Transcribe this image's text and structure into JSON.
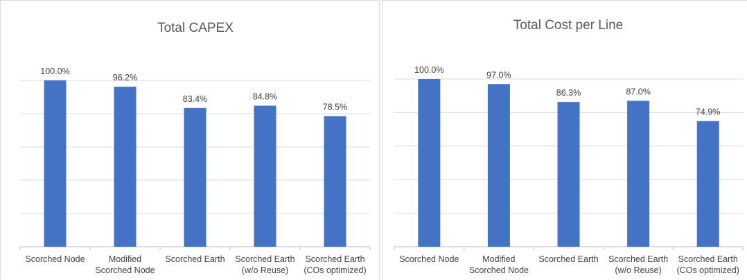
{
  "chart_data": [
    {
      "type": "bar",
      "title": "Total CAPEX",
      "categories": [
        [
          "Scorched Node"
        ],
        [
          "Modified",
          "Scorched Node"
        ],
        [
          "Scorched Earth"
        ],
        [
          "Scorched Earth",
          "(w/o Reuse)"
        ],
        [
          "Scorched Earth",
          "(COs optimized)"
        ]
      ],
      "values": [
        100.0,
        96.2,
        83.4,
        84.8,
        78.5
      ],
      "data_labels": [
        "100.0%",
        "96.2%",
        "83.4%",
        "84.8%",
        "78.5%"
      ],
      "ylim": [
        0,
        100
      ],
      "grid": true,
      "bar_color": "#4472C4"
    },
    {
      "type": "bar",
      "title": "Total Cost per Line",
      "categories": [
        [
          "Scorched Node"
        ],
        [
          "Modified",
          "Scorched Node"
        ],
        [
          "Scorched Earth"
        ],
        [
          "Scorched Earth",
          "(w/o Reuse)"
        ],
        [
          "Scorched Earth",
          "(COs optimized)"
        ]
      ],
      "values": [
        100.0,
        97.0,
        86.3,
        87.0,
        74.9
      ],
      "data_labels": [
        "100.0%",
        "97.0%",
        "86.3%",
        "87.0%",
        "74.9%"
      ],
      "ylim": [
        0,
        100
      ],
      "grid": true,
      "bar_color": "#4472C4"
    }
  ]
}
